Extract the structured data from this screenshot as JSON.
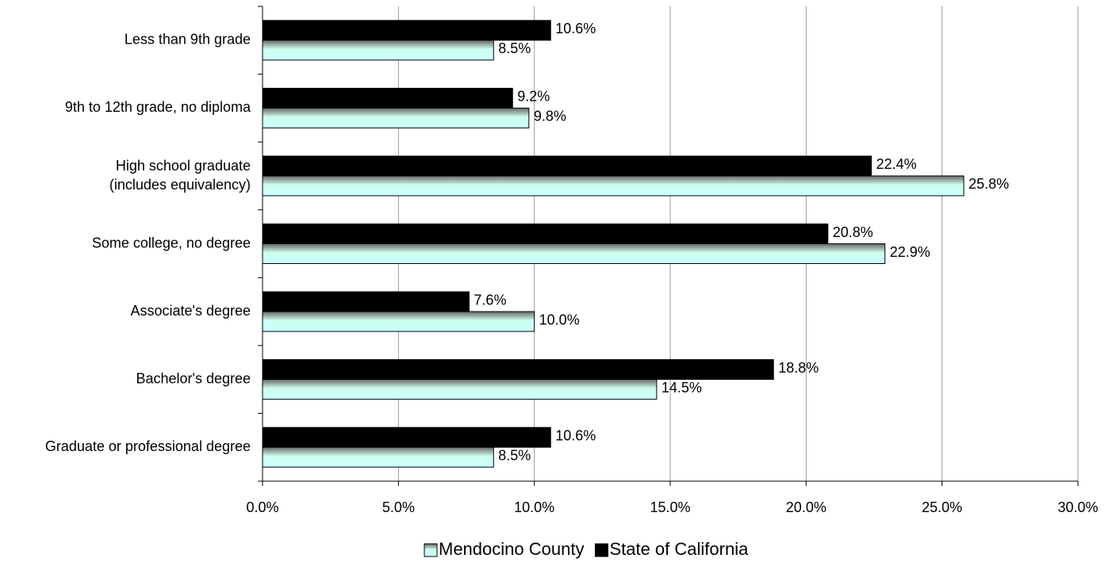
{
  "chart_data": {
    "type": "hbar",
    "categories": [
      "Less than 9th grade",
      "9th to 12th grade, no diploma",
      "High school graduate (includes equivalency)",
      "Some college, no degree",
      "Associate's degree",
      "Bachelor's degree",
      "Graduate or professional degree"
    ],
    "series": [
      {
        "name": "Mendocino County",
        "color": "#ccffff",
        "values": [
          8.5,
          9.8,
          25.8,
          22.9,
          10.0,
          14.5,
          8.5
        ],
        "value_labels": [
          "8.5%",
          "9.8%",
          "25.8%",
          "22.9%",
          "10.0%",
          "14.5%",
          "8.5%"
        ]
      },
      {
        "name": "State of California",
        "color": "#000000",
        "values": [
          10.6,
          9.2,
          22.4,
          20.8,
          7.6,
          18.8,
          10.6
        ],
        "value_labels": [
          "10.6%",
          "9.2%",
          "22.4%",
          "20.8%",
          "7.6%",
          "18.8%",
          "10.6%"
        ]
      }
    ],
    "xlim": [
      0,
      30
    ],
    "xticks": [
      {
        "value": 0,
        "label": "0.0%"
      },
      {
        "value": 5,
        "label": "5.0%"
      },
      {
        "value": 10,
        "label": "10.0%"
      },
      {
        "value": 15,
        "label": "15.0%"
      },
      {
        "value": 20,
        "label": "20.0%"
      },
      {
        "value": 25,
        "label": "25.0%"
      },
      {
        "value": 30,
        "label": "30.0%"
      }
    ],
    "grid": true,
    "legend": "bottom"
  }
}
